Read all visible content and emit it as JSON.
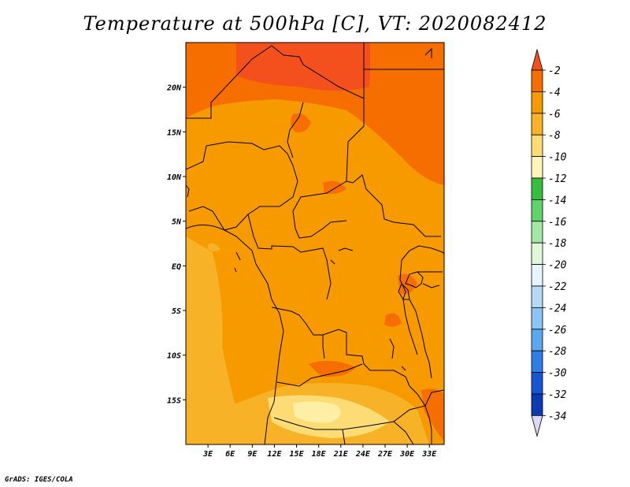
{
  "title": "Temperature at 500hPa [C], VT: 2020082412",
  "credit": "GrADS: IGES/COLA",
  "map": {
    "lon_range": [
      0,
      35
    ],
    "lat_range": [
      -20,
      25
    ],
    "lon_ticks": [
      {
        "value": 3,
        "label": "3E"
      },
      {
        "value": 6,
        "label": "6E"
      },
      {
        "value": 9,
        "label": "9E"
      },
      {
        "value": 12,
        "label": "12E"
      },
      {
        "value": 15,
        "label": "15E"
      },
      {
        "value": 18,
        "label": "18E"
      },
      {
        "value": 21,
        "label": "21E"
      },
      {
        "value": 24,
        "label": "24E"
      },
      {
        "value": 27,
        "label": "27E"
      },
      {
        "value": 30,
        "label": "30E"
      },
      {
        "value": 33,
        "label": "33E"
      }
    ],
    "lat_ticks": [
      {
        "value": 20,
        "label": "20N"
      },
      {
        "value": 15,
        "label": "15N"
      },
      {
        "value": 10,
        "label": "10N"
      },
      {
        "value": 5,
        "label": "5N"
      },
      {
        "value": 0,
        "label": "EQ"
      },
      {
        "value": -5,
        "label": "5S"
      },
      {
        "value": -10,
        "label": "10S"
      },
      {
        "value": -15,
        "label": "15S"
      }
    ]
  },
  "colorbar": {
    "levels": [
      {
        "label": "-2",
        "color": "#f4501e"
      },
      {
        "label": "-4",
        "color": "#f66e00"
      },
      {
        "label": "-6",
        "color": "#f69a00"
      },
      {
        "label": "-8",
        "color": "#f7b227"
      },
      {
        "label": "-10",
        "color": "#fddc75"
      },
      {
        "label": "-12",
        "color": "#fff7ba"
      },
      {
        "label": "-14",
        "color": "#34bd3f"
      },
      {
        "label": "-16",
        "color": "#5ed46a"
      },
      {
        "label": "-18",
        "color": "#a2e8a2"
      },
      {
        "label": "-20",
        "color": "#e0f8d8"
      },
      {
        "label": "-22",
        "color": "#e4f5ff"
      },
      {
        "label": "-24",
        "color": "#b5daf5"
      },
      {
        "label": "-26",
        "color": "#8bc5f5"
      },
      {
        "label": "-28",
        "color": "#5ba8f0"
      },
      {
        "label": "-30",
        "color": "#2f7ee8"
      },
      {
        "label": "-32",
        "color": "#1656d2"
      },
      {
        "label": "-34",
        "color": "#0a3ab4"
      }
    ],
    "bottom_color": "#0c0c78",
    "below_color": "#ddd8f5"
  }
}
